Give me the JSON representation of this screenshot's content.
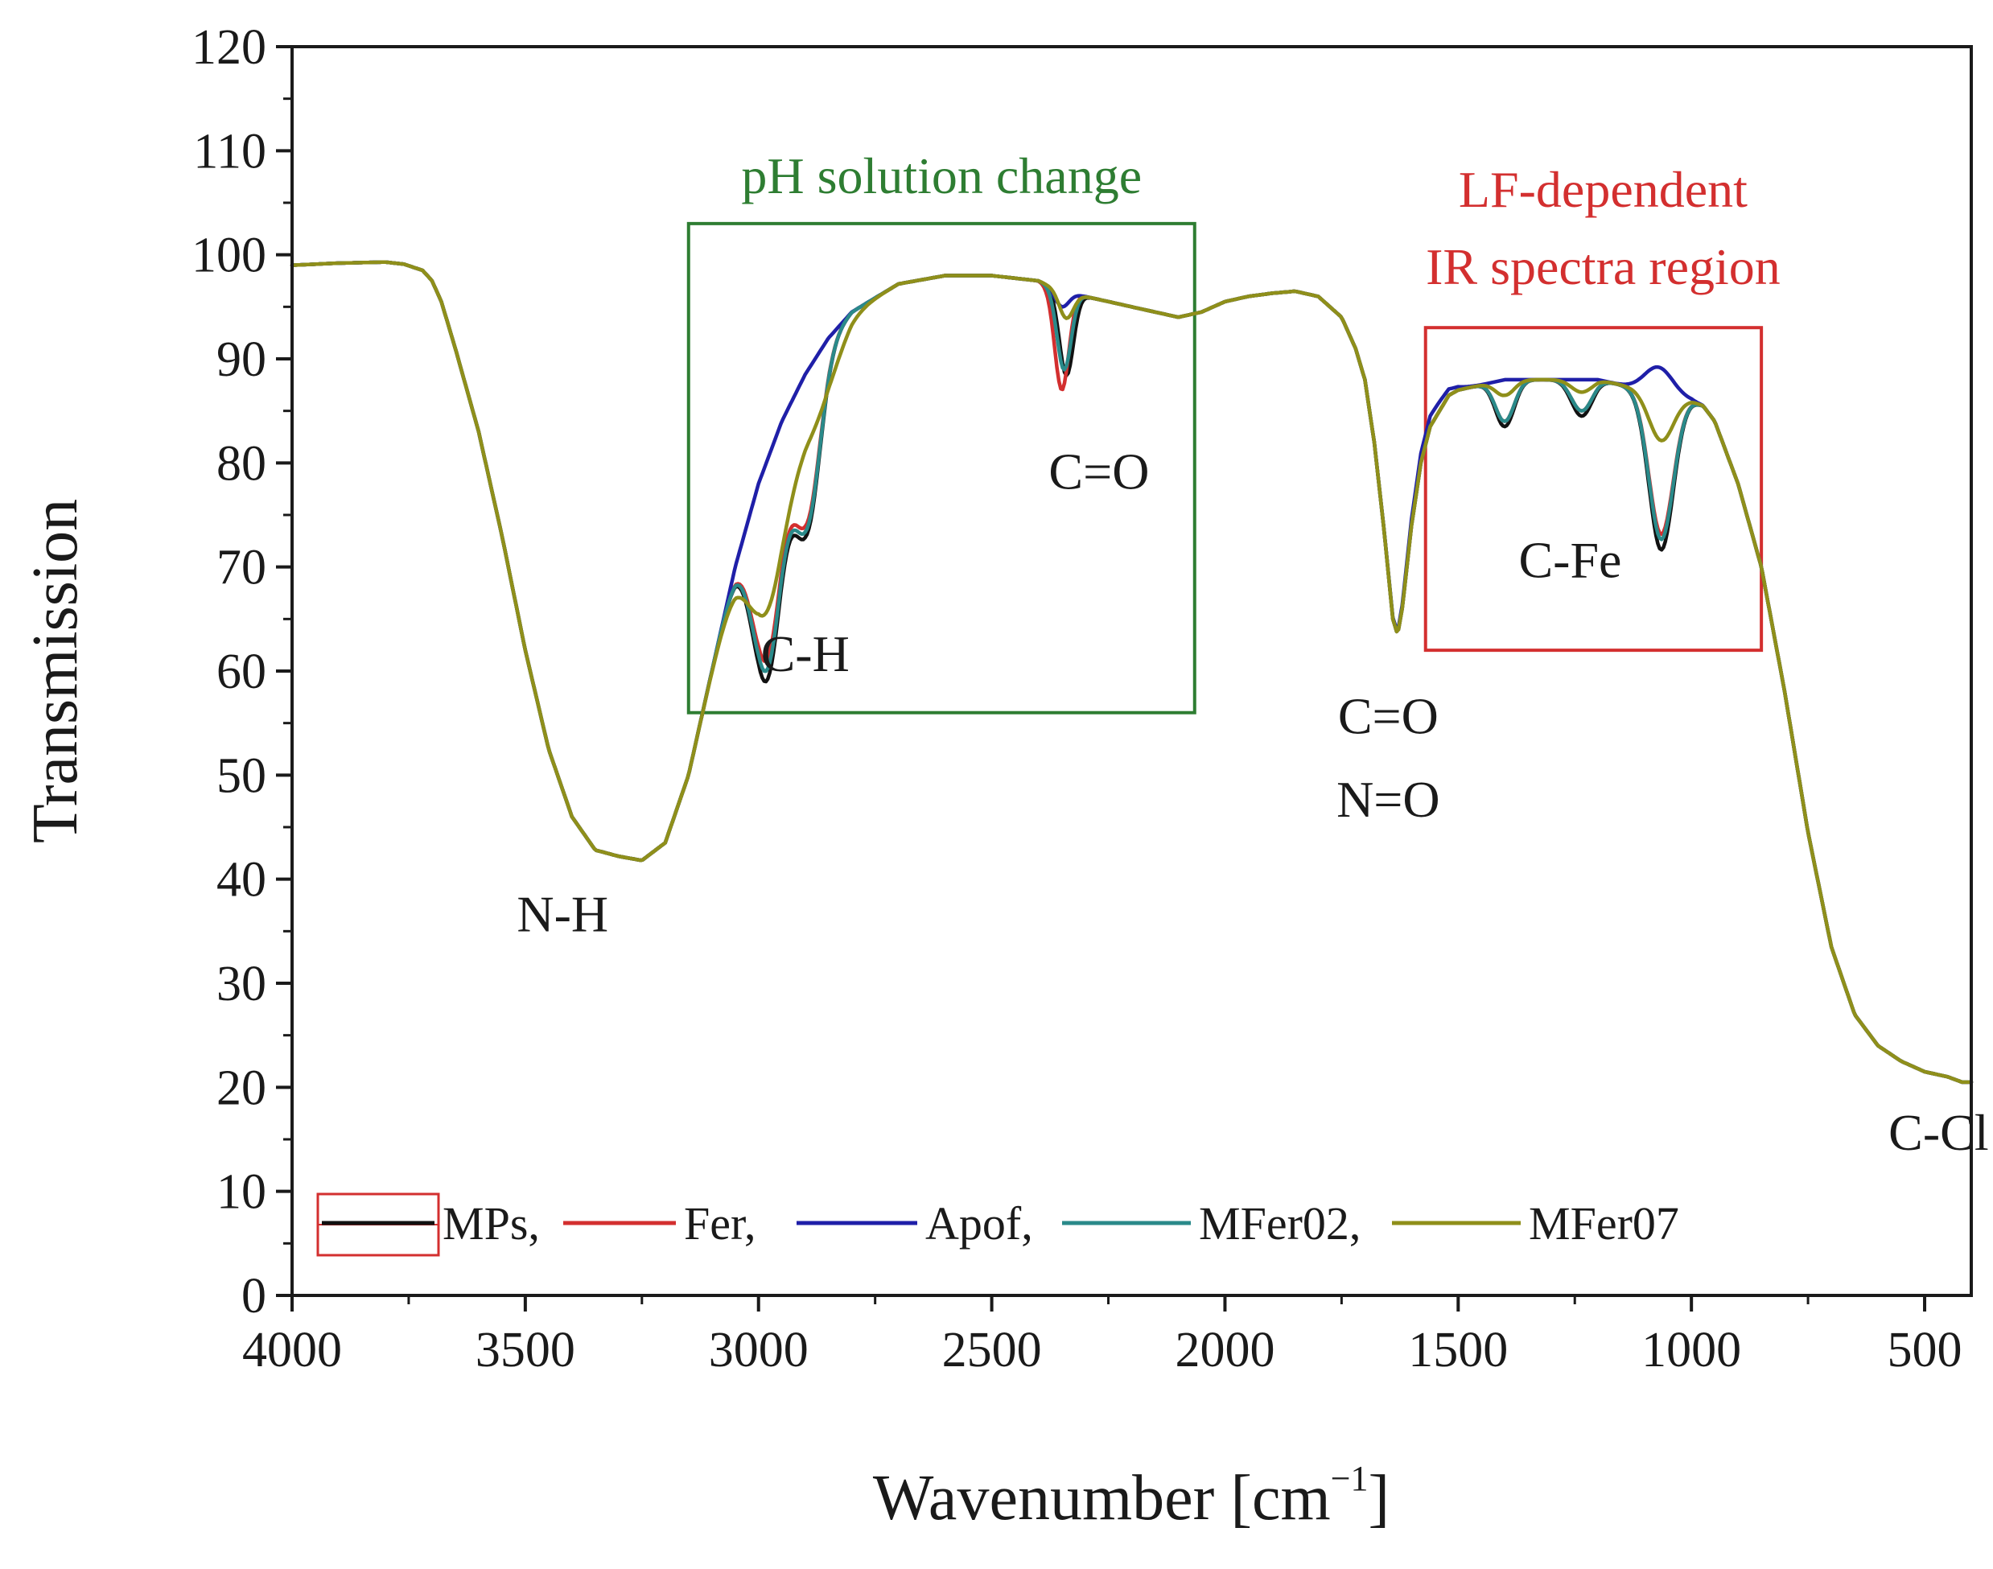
{
  "chart_data": {
    "type": "line",
    "xlabel": "Wavenumber [cm",
    "xlabel_sup": "−1",
    "xlabel_close": "]",
    "ylabel": "Transmission",
    "xlim": [
      4000,
      400
    ],
    "ylim": [
      0,
      120
    ],
    "x_ticks": [
      4000,
      3500,
      3000,
      2500,
      2000,
      1500,
      1000,
      500
    ],
    "y_ticks": [
      0,
      10,
      20,
      30,
      40,
      50,
      60,
      70,
      80,
      90,
      100,
      110,
      120
    ],
    "annotations": [
      {
        "text": "N-H",
        "x": 3420,
        "y": 35
      },
      {
        "text": "C-H",
        "x": 2900,
        "y": 60
      },
      {
        "text": "C=O",
        "x": 2270,
        "y": 77.5
      },
      {
        "text": "C=O",
        "x": 1650,
        "y": 54
      },
      {
        "text": "N=O",
        "x": 1650,
        "y": 46
      },
      {
        "text": "C-Fe",
        "x": 1260,
        "y": 69
      },
      {
        "text": "C-Cl",
        "x": 470,
        "y": 14
      }
    ],
    "regions": [
      {
        "label": "pH solution change",
        "x_from": 3150,
        "x_to": 2065,
        "y_from": 56,
        "y_to": 103,
        "color": "#2e7d32"
      },
      {
        "label_lines": [
          "LF-dependent",
          "IR spectra region"
        ],
        "x_from": 1570,
        "x_to": 850,
        "y_from": 62,
        "y_to": 93,
        "color": "#d32f2f"
      }
    ],
    "legend_position": "bottom-left",
    "base_curve": {
      "x": [
        4000,
        3900,
        3800,
        3760,
        3720,
        3700,
        3680,
        3650,
        3600,
        3550,
        3500,
        3450,
        3400,
        3350,
        3300,
        3250,
        3200,
        3150,
        3100,
        3050,
        3000,
        2950,
        2900,
        2850,
        2800,
        2700,
        2600,
        2500,
        2400,
        2350,
        2300,
        2250,
        2200,
        2150,
        2100,
        2050,
        2000,
        1950,
        1900,
        1850,
        1800,
        1750,
        1720,
        1700,
        1680,
        1660,
        1640,
        1630,
        1620,
        1600,
        1580,
        1560,
        1540,
        1520,
        1500,
        1450,
        1400,
        1350,
        1300,
        1250,
        1200,
        1150,
        1100,
        1050,
        1000,
        975,
        950,
        925,
        900,
        850,
        800,
        750,
        700,
        650,
        600,
        550,
        500,
        450,
        420,
        400
      ],
      "y": [
        99,
        99.2,
        99.3,
        99.1,
        98.5,
        97.5,
        95.5,
        91,
        83,
        73,
        62,
        52.5,
        46,
        42.8,
        42.2,
        41.8,
        43.5,
        50,
        60,
        70,
        78,
        84,
        88.5,
        92,
        94.5,
        97.2,
        98,
        98,
        97.5,
        96.5,
        96,
        95.5,
        95,
        94.5,
        94,
        94.5,
        95.5,
        96,
        96.3,
        96.5,
        96,
        94,
        91,
        88,
        82,
        74,
        65,
        63.5,
        66,
        74,
        80,
        83.5,
        85,
        86.5,
        87,
        87.5,
        88,
        88,
        88,
        88,
        88,
        87.5,
        87,
        86.5,
        86,
        85.5,
        84,
        81,
        78,
        70,
        58,
        44.5,
        33.5,
        27,
        24,
        22.5,
        21.5,
        21,
        20.5,
        20.5
      ]
    },
    "series": [
      {
        "name": "MPs,",
        "color": "#111111",
        "dips": [
          [
            2980,
            21,
            32
          ],
          [
            2895,
            15,
            28
          ],
          [
            2340,
            8,
            15
          ],
          [
            1400,
            4.5,
            20
          ],
          [
            1235,
            3.5,
            22
          ],
          [
            1065,
            15,
            26
          ]
        ]
      },
      {
        "name": "Fer,",
        "color": "#d32f2f",
        "dips": [
          [
            2980,
            19,
            32
          ],
          [
            2895,
            14,
            28
          ],
          [
            2350,
            9.5,
            15
          ],
          [
            1400,
            4,
            20
          ],
          [
            1235,
            3,
            22
          ],
          [
            1065,
            13.5,
            26
          ]
        ]
      },
      {
        "name": "Apof,",
        "color": "#1f1fa8",
        "dips": [
          [
            2350,
            1.5,
            15
          ]
        ],
        "bumps": [
          [
            1070,
            2.5,
            30
          ],
          [
            1560,
            1,
            40
          ]
        ]
      },
      {
        "name": "MFer02,",
        "color": "#2a8a8a",
        "dips": [
          [
            2980,
            20,
            32
          ],
          [
            2895,
            14.5,
            28
          ],
          [
            2345,
            7.5,
            15
          ],
          [
            1400,
            4,
            20
          ],
          [
            1235,
            3,
            22
          ],
          [
            1065,
            14,
            26
          ]
        ]
      },
      {
        "name": "MFer07",
        "color": "#8f8f1a",
        "dips": [
          [
            2980,
            14,
            40
          ],
          [
            2880,
            6,
            45
          ],
          [
            2340,
            2.5,
            15
          ],
          [
            1400,
            1.5,
            20
          ],
          [
            1235,
            1.2,
            22
          ],
          [
            1065,
            4.5,
            26
          ]
        ]
      }
    ]
  }
}
